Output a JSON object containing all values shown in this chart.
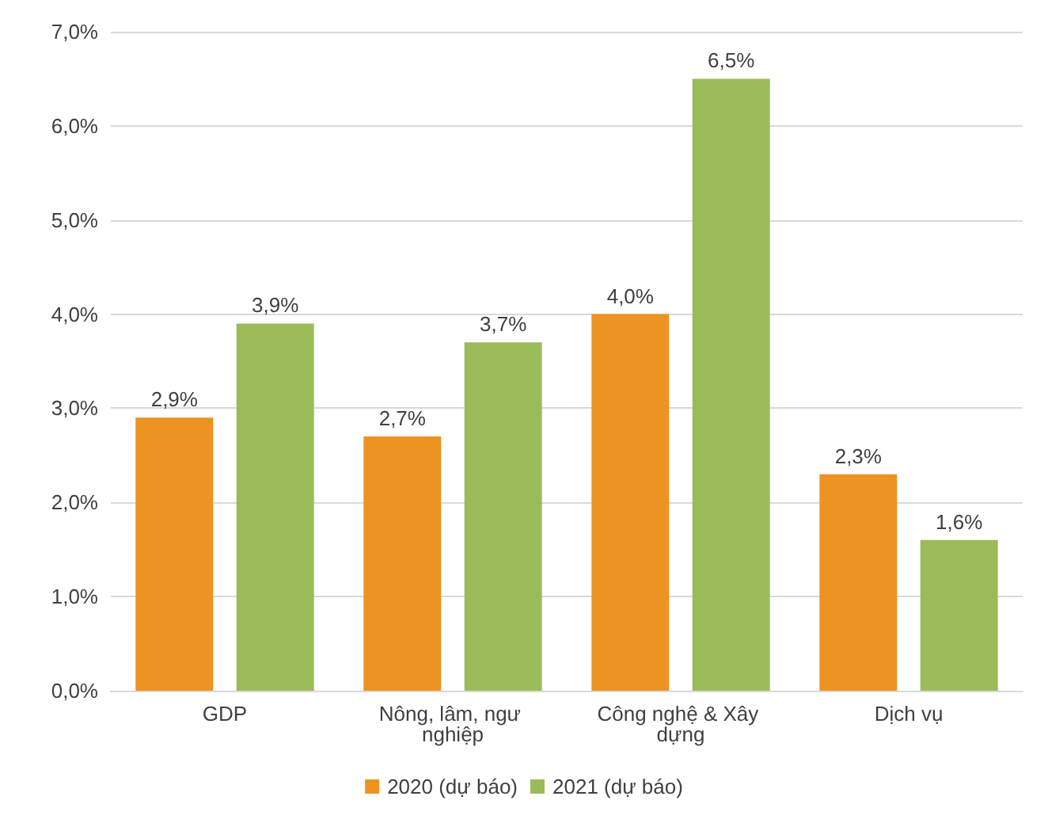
{
  "chart_data": {
    "type": "bar",
    "categories": [
      "GDP",
      "Nông, lâm, ngư nghiệp",
      "Công nghệ & Xây dựng",
      "Dịch vụ"
    ],
    "series": [
      {
        "name": "2020 (dự báo)",
        "color": "#ed9322",
        "values": [
          2.9,
          2.7,
          4.0,
          2.3
        ],
        "value_labels": [
          "2,9%",
          "2,7%",
          "4,0%",
          "2,3%"
        ]
      },
      {
        "name": "2021 (dự báo)",
        "color": "#9bbb59",
        "values": [
          3.9,
          3.7,
          6.5,
          1.6
        ],
        "value_labels": [
          "3,9%",
          "3,7%",
          "6,5%",
          "1,6%"
        ]
      }
    ],
    "ylim": [
      0,
      7
    ],
    "yticks": [
      {
        "value": 0,
        "label": "0,0%"
      },
      {
        "value": 1,
        "label": "1,0%"
      },
      {
        "value": 2,
        "label": "2,0%"
      },
      {
        "value": 3,
        "label": "3,0%"
      },
      {
        "value": 4,
        "label": "4,0%"
      },
      {
        "value": 5,
        "label": "5,0%"
      },
      {
        "value": 6,
        "label": "6,0%"
      },
      {
        "value": 7,
        "label": "7,0%"
      }
    ],
    "grid": "y",
    "legend": "bottom"
  }
}
